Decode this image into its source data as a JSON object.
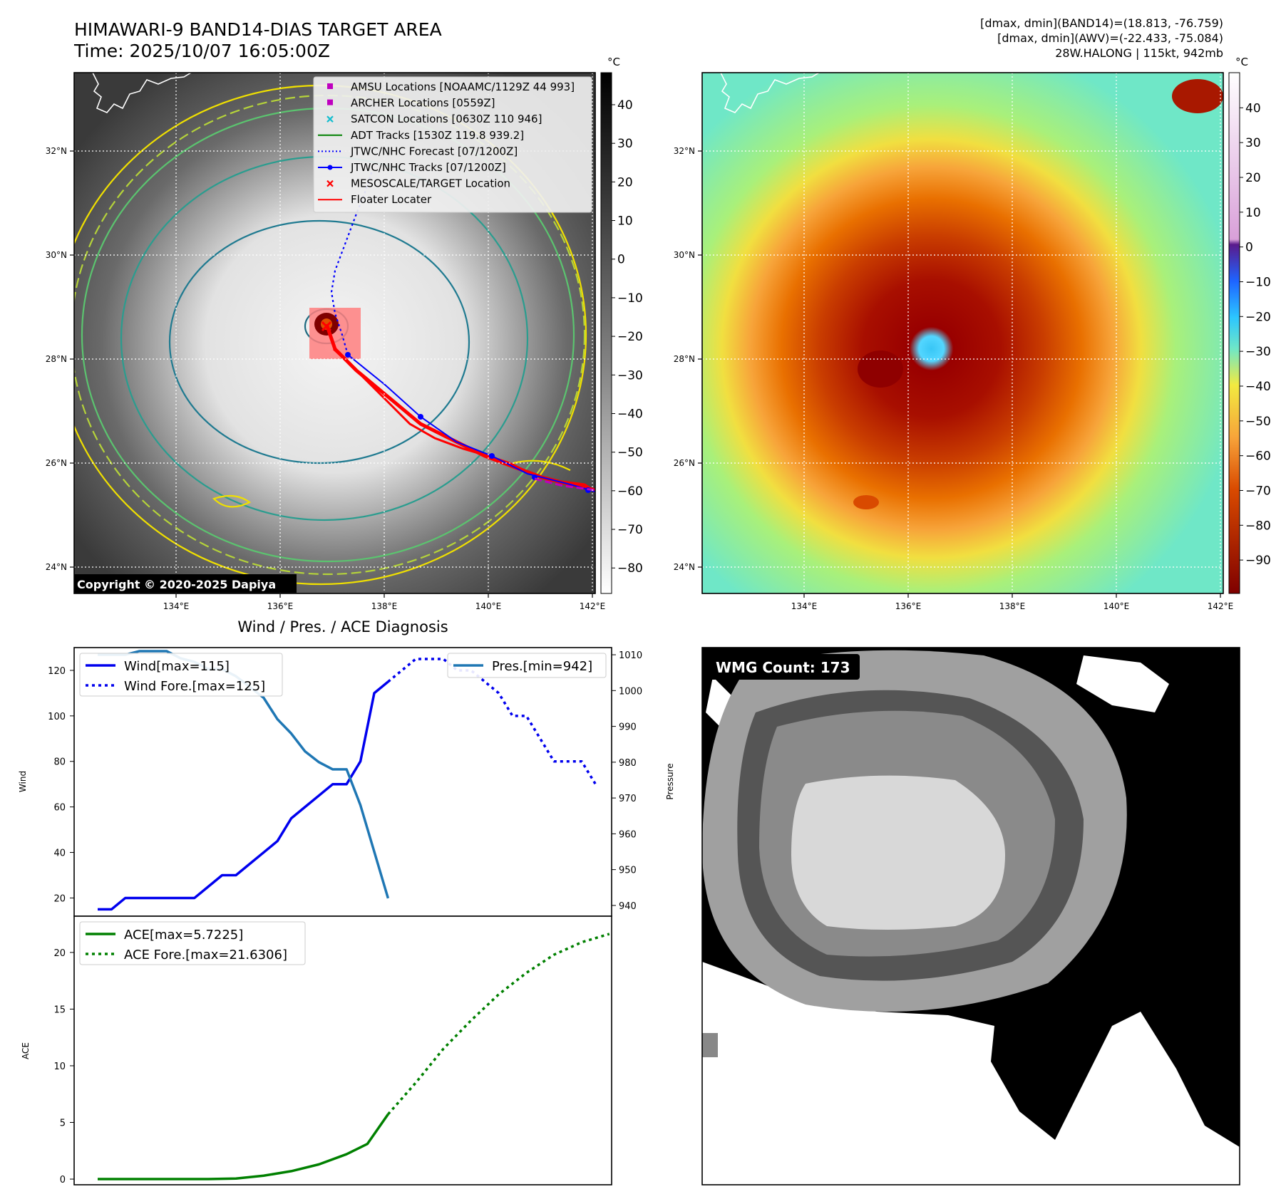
{
  "header": {
    "title_line1": "HIMAWARI-9 BAND14-DIAS TARGET AREA",
    "title_line2": "Time: 2025/10/07 16:05:00Z",
    "stats_line1": "[dmax, dmin](BAND14)=(18.813, -76.759)",
    "stats_line2": "[dmax, dmin](AWV)=(-22.433, -75.084)",
    "stats_line3": "28W.HALONG | 115kt, 942mb",
    "copyright": "Copyright © 2020-2025 Dapiya"
  },
  "map": {
    "lon_ticks": [
      "134°E",
      "136°E",
      "138°E",
      "140°E",
      "142°E"
    ],
    "lat_ticks": [
      "24°N",
      "26°N",
      "28°N",
      "30°N",
      "32°N"
    ],
    "legend": [
      {
        "label": "AMSU Locations [NOAAMC/1129Z 44 993]",
        "color": "#bf00bf",
        "marker": "square"
      },
      {
        "label": "ARCHER Locations [0559Z]",
        "color": "#bf00bf",
        "marker": "square"
      },
      {
        "label": "SATCON Locations [0630Z 110 946]",
        "color": "#17becf",
        "marker": "x"
      },
      {
        "label": "ADT Tracks [1530Z 119.8 939.2]",
        "color": "#008000",
        "marker": "line"
      },
      {
        "label": "JTWC/NHC Forecast [07/1200Z]",
        "color": "#0000ff",
        "marker": "dotted"
      },
      {
        "label": "JTWC/NHC Tracks [07/1200Z]",
        "color": "#0000ff",
        "marker": "line-dot"
      },
      {
        "label": "MESOSCALE/TARGET Location",
        "color": "#ff0000",
        "marker": "x"
      },
      {
        "label": "Floater Locater",
        "color": "#ff0000",
        "marker": "line"
      }
    ],
    "cbar_unit": "°C",
    "cbar_left_ticks": [
      40,
      30,
      20,
      10,
      0,
      -10,
      -20,
      -30,
      -40,
      -50,
      -60,
      -70,
      -80
    ],
    "cbar_right_ticks": [
      40,
      30,
      20,
      10,
      0,
      -10,
      -20,
      -30,
      -40,
      -50,
      -60,
      -70,
      -80,
      -90
    ]
  },
  "chart_data": [
    {
      "type": "line",
      "title": "Wind / Pres. / ACE Diagnosis",
      "ylabel": "Wind",
      "y2label": "Pressure",
      "ylim": [
        12,
        130
      ],
      "y2lim": [
        937,
        1012
      ],
      "yticks": [
        20,
        40,
        60,
        80,
        100,
        120
      ],
      "y2ticks": [
        940,
        950,
        960,
        970,
        980,
        990,
        1000,
        1010
      ],
      "series": [
        {
          "name": "Wind[max=115]",
          "style": "solid",
          "color": "#0000ee",
          "x": [
            0,
            1,
            2,
            3,
            4,
            5,
            6,
            7,
            8,
            9,
            10,
            11,
            12,
            13,
            14,
            15,
            16,
            17,
            18,
            19,
            20,
            21
          ],
          "values": [
            15,
            15,
            20,
            20,
            20,
            20,
            20,
            20,
            25,
            30,
            30,
            35,
            40,
            45,
            55,
            60,
            65,
            70,
            70,
            80,
            110,
            115
          ]
        },
        {
          "name": "Wind Fore.[max=125]",
          "style": "dotted",
          "color": "#0000ee",
          "x": [
            21,
            22,
            23,
            24,
            25,
            26,
            27,
            28,
            29,
            30,
            31,
            32,
            33,
            34,
            35,
            36
          ],
          "values": [
            115,
            120,
            125,
            125,
            125,
            120,
            120,
            115,
            110,
            100,
            100,
            90,
            80,
            80,
            80,
            70
          ]
        },
        {
          "name": "Pres.[min=942]",
          "style": "solid",
          "color": "#1f77b4",
          "axis": "right",
          "x": [
            0,
            1,
            2,
            3,
            4,
            5,
            6,
            7,
            8,
            9,
            10,
            11,
            12,
            13,
            14,
            15,
            16,
            17,
            18,
            19,
            20,
            21
          ],
          "values": [
            1010,
            1010,
            1010,
            1011,
            1011,
            1011,
            1009,
            1008,
            1006,
            1006,
            1004,
            1001,
            998,
            992,
            988,
            983,
            980,
            978,
            978,
            968,
            955,
            942
          ]
        }
      ]
    },
    {
      "type": "line",
      "ylabel": "ACE",
      "ylim": [
        -0.5,
        23.2
      ],
      "yticks": [
        0,
        5,
        10,
        15,
        20
      ],
      "series": [
        {
          "name": "ACE[max=5.7225]",
          "style": "solid",
          "color": "#008000",
          "x": [
            0,
            2,
            4,
            6,
            8,
            10,
            12,
            14,
            16,
            18,
            19.5,
            21
          ],
          "values": [
            0,
            0,
            0,
            0,
            0,
            0.05,
            0.3,
            0.7,
            1.3,
            2.2,
            3.1,
            5.7225
          ]
        },
        {
          "name": "ACE Fore.[max=21.6306]",
          "style": "dotted",
          "color": "#008000",
          "x": [
            21,
            23,
            25,
            27,
            29,
            31,
            33,
            35,
            37
          ],
          "values": [
            5.7225,
            8.5,
            11.5,
            14.0,
            16.3,
            18.2,
            19.8,
            20.9,
            21.6306
          ]
        }
      ]
    }
  ],
  "wmg": {
    "label": "WMG Count: 173"
  }
}
